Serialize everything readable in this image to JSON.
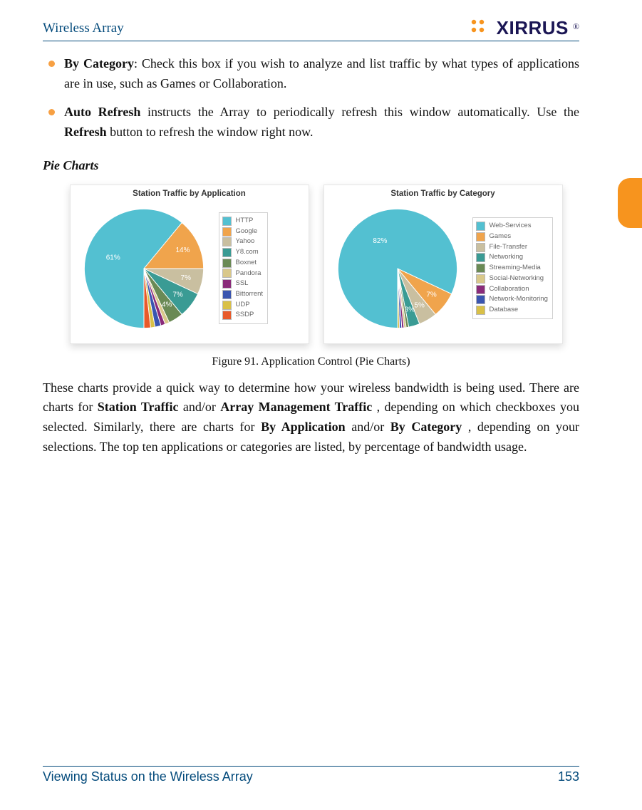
{
  "header": {
    "title": "Wireless Array",
    "logo_text": "XIRRUS",
    "logo_accent_color": "#f7941e",
    "logo_navy": "#1b1654"
  },
  "bullets": {
    "item1_bold": "By Category",
    "item1_rest": ": Check this box if you wish to analyze and list traffic by what types of applications are in use, such as Games or Collaboration.",
    "item2_bold": "Auto Refresh",
    "item2_mid": " instructs the Array to periodically refresh this window automatically. Use the ",
    "item2_bold2": "Refresh",
    "item2_end": " button to refresh the window right now."
  },
  "section_subtitle": "Pie Charts",
  "figure_caption": "Figure 91. Application Control (Pie Charts)",
  "chart1": {
    "title": "Station Traffic by Application",
    "type": "pie",
    "slices": [
      {
        "label": "HTTP",
        "value": 61,
        "color": "#53c0d1",
        "text": "61%"
      },
      {
        "label": "Google",
        "value": 14,
        "color": "#f0a44c",
        "text": "14%"
      },
      {
        "label": "Yahoo",
        "value": 7,
        "color": "#c9bfa0",
        "text": "7%"
      },
      {
        "label": "Y8.com",
        "value": 7,
        "color": "#3a9b94",
        "text": "7%"
      },
      {
        "label": "Boxnet",
        "value": 4,
        "color": "#6a8a55",
        "text": "4%"
      },
      {
        "label": "Pandora",
        "value": 1.2,
        "color": "#d9c88a",
        "text": ""
      },
      {
        "label": "SSL",
        "value": 1.2,
        "color": "#8a2b7a",
        "text": ""
      },
      {
        "label": "Bittorrent",
        "value": 1.6,
        "color": "#3a55b0",
        "text": ""
      },
      {
        "label": "UDP",
        "value": 1.2,
        "color": "#d9c047",
        "text": ""
      },
      {
        "label": "SSDP",
        "value": 1.8,
        "color": "#e85a2a",
        "text": ""
      }
    ],
    "label_fontsize": 10.5,
    "label_color": "#ffffff",
    "legend_border": "#d0d0d0"
  },
  "chart2": {
    "title": "Station Traffic by Category",
    "type": "pie",
    "slices": [
      {
        "label": "Web-Services",
        "value": 82,
        "color": "#53c0d1",
        "text": "82%"
      },
      {
        "label": "Games",
        "value": 7,
        "color": "#f0a44c",
        "text": "7%"
      },
      {
        "label": "File-Transfer",
        "value": 5,
        "color": "#c9bfa0",
        "text": "5%"
      },
      {
        "label": "Networking",
        "value": 3,
        "color": "#3a9b94",
        "text": "3%"
      },
      {
        "label": "Streaming-Media",
        "value": 0.7,
        "color": "#6a8a55",
        "text": ""
      },
      {
        "label": "Social-Networking",
        "value": 0.6,
        "color": "#d9c88a",
        "text": ""
      },
      {
        "label": "Collaboration",
        "value": 0.6,
        "color": "#8a2b7a",
        "text": ""
      },
      {
        "label": "Network-Monitoring",
        "value": 0.6,
        "color": "#3a55b0",
        "text": ""
      },
      {
        "label": "Database",
        "value": 0.5,
        "color": "#d9c047",
        "text": ""
      }
    ],
    "label_fontsize": 10.5,
    "label_color": "#ffffff",
    "legend_border": "#d0d0d0"
  },
  "body_paragraph": {
    "p1": "These charts provide a quick way to determine how your wireless bandwidth is being used. There are charts for ",
    "b1": "Station Traffic",
    "p2": " and/or ",
    "b2": "Array Management Traffic",
    "p3": ", depending on which checkboxes you selected. Similarly, there are charts for ",
    "b3": "By Application",
    "p4": " and/or ",
    "b4": "By Category",
    "p5": ", depending on your selections. The top ten applications or categories are listed, by percentage of bandwidth usage."
  },
  "footer": {
    "section": "Viewing Status on the Wireless Array",
    "page": "153"
  },
  "colors": {
    "rule": "#034a7b",
    "bullet": "#f7a043",
    "side_tab": "#f7941e"
  }
}
